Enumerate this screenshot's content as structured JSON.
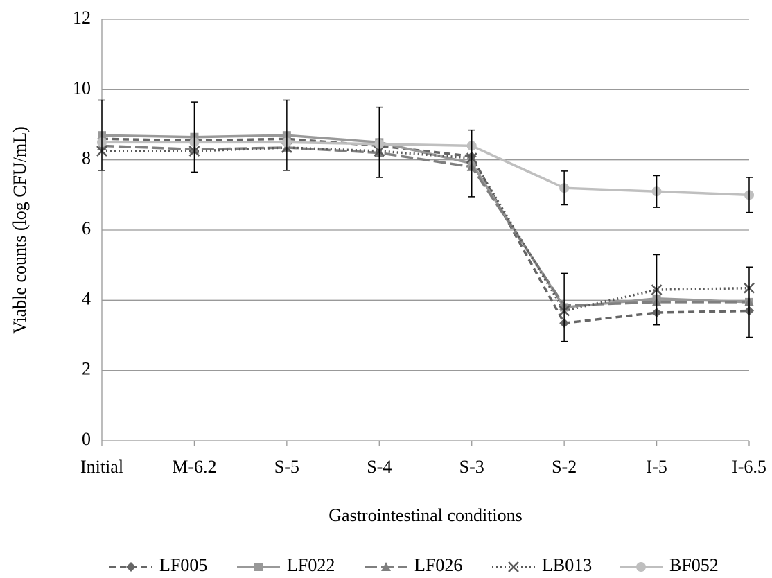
{
  "chart_data": {
    "type": "line",
    "categories": [
      "Initial",
      "M-6.2",
      "S-5",
      "S-4",
      "S-3",
      "S-2",
      "I-5",
      "I-6.5"
    ],
    "xlabel": "Gastrointestinal conditions",
    "ylabel": "Viable counts (log CFU/mL)",
    "ylim": [
      0,
      12
    ],
    "yticks": [
      0,
      2,
      4,
      6,
      8,
      10,
      12
    ],
    "grid": true,
    "legend": "bottom",
    "series": [
      {
        "name": "LF005",
        "color": "#666666",
        "dash": "9,6",
        "marker": "diamond",
        "values": [
          8.6,
          8.55,
          8.6,
          8.4,
          8.1,
          3.35,
          3.65,
          3.7
        ],
        "errors": [
          null,
          null,
          null,
          null,
          null,
          null,
          null,
          null
        ]
      },
      {
        "name": "LF022",
        "color": "#999999",
        "dash": "none",
        "marker": "square",
        "values": [
          8.7,
          8.65,
          8.7,
          8.5,
          7.9,
          3.8,
          4.05,
          3.95
        ],
        "errors": [
          1.0,
          1.0,
          1.0,
          1.0,
          0.95,
          0.97,
          null,
          1.0
        ]
      },
      {
        "name": "LF026",
        "color": "#7f7f7f",
        "dash": "18,6",
        "marker": "triangle",
        "values": [
          8.4,
          8.3,
          8.35,
          8.2,
          7.8,
          3.85,
          3.95,
          3.95
        ],
        "errors": [
          null,
          null,
          null,
          null,
          null,
          null,
          null,
          null
        ]
      },
      {
        "name": "LB013",
        "color": "#595959",
        "dash": "2,4",
        "marker": "x",
        "values": [
          8.25,
          8.25,
          8.35,
          8.25,
          8.05,
          3.7,
          4.3,
          4.35
        ],
        "errors": [
          null,
          null,
          null,
          null,
          null,
          null,
          1.0,
          null
        ]
      },
      {
        "name": "BF052",
        "color": "#bfbfbf",
        "dash": "none",
        "marker": "circle",
        "values": [
          8.5,
          8.5,
          8.5,
          8.45,
          8.4,
          7.2,
          7.1,
          7.0
        ],
        "errors": [
          null,
          null,
          null,
          null,
          null,
          0.48,
          0.45,
          0.5
        ]
      }
    ]
  }
}
